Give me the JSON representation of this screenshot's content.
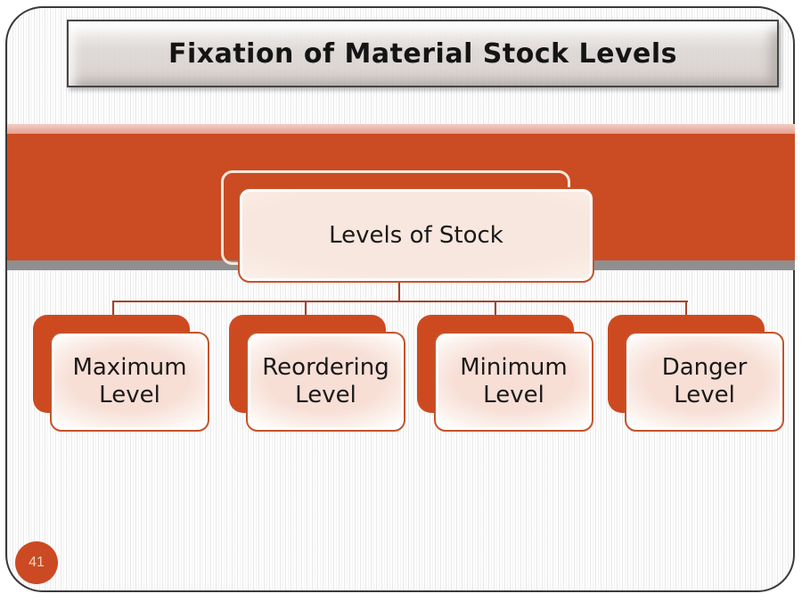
{
  "slide": {
    "title": "Fixation of Material Stock Levels",
    "page_number": "41"
  },
  "diagram": {
    "root_label": "Levels of Stock",
    "children": [
      {
        "label": "Maximum Level"
      },
      {
        "label": "Reordering Level"
      },
      {
        "label": "Minimum Level"
      },
      {
        "label": "Danger Level"
      }
    ]
  },
  "colors": {
    "band_orange": "#CB4B22",
    "pink_strip": "#E5A090",
    "gray_strip": "#8F8F8F",
    "node_orange": "#CD4A20",
    "node_border": "#C5532C",
    "node_fill_pink": "#F7DFD6",
    "root_fill_cream": "#F8E7DE",
    "outline_cream": "#F8E7DA",
    "connector": "#A84328",
    "page_circle": "#CB4A24",
    "page_number_text": "#F3D3BF"
  }
}
